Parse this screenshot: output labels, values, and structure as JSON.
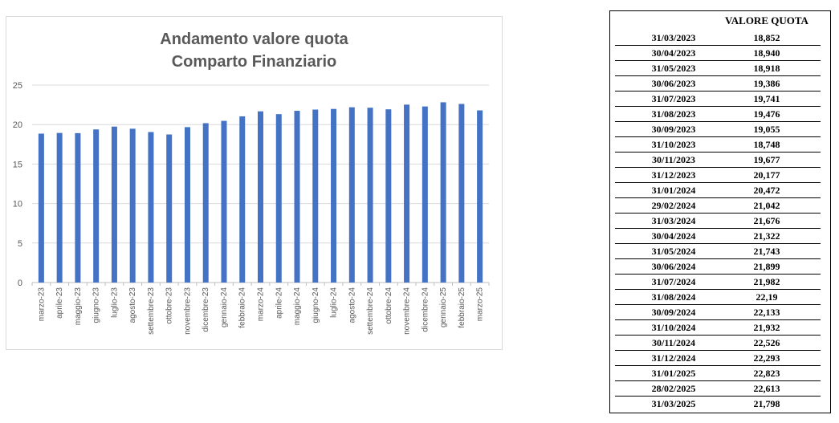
{
  "chart_data": {
    "type": "bar",
    "title_lines": [
      "Andamento valore quota",
      "Comparto Finanziario"
    ],
    "categories": [
      "marzo-23",
      "aprile-23",
      "maggio-23",
      "giugno-23",
      "luglio-23",
      "agosto-23",
      "settembre-23",
      "ottobre-23",
      "novembre-23",
      "dicembre-23",
      "gennaio-24",
      "febbraio-24",
      "marzo-24",
      "aprile-24",
      "maggio-24",
      "giugno-24",
      "luglio-24",
      "agosto-24",
      "settembre-24",
      "ottobre-24",
      "novembre-24",
      "dicembre-24",
      "gennaio-25",
      "febbraio-25",
      "marzo-25"
    ],
    "values": [
      18.852,
      18.94,
      18.918,
      19.386,
      19.741,
      19.476,
      19.055,
      18.748,
      19.677,
      20.177,
      20.472,
      21.042,
      21.676,
      21.322,
      21.743,
      21.899,
      21.982,
      22.19,
      22.133,
      21.932,
      22.526,
      22.293,
      22.823,
      22.613,
      21.798
    ],
    "ylim": [
      0,
      25
    ],
    "yticks": [
      "0",
      "5",
      "10",
      "15",
      "20",
      "25"
    ],
    "grid": true,
    "bar_color": "#4472c4",
    "grid_color": "#d9d9d9"
  },
  "table": {
    "header": "VALORE QUOTA",
    "rows": [
      {
        "date": "31/03/2023",
        "value": "18,852"
      },
      {
        "date": "30/04/2023",
        "value": "18,940"
      },
      {
        "date": "31/05/2023",
        "value": "18,918"
      },
      {
        "date": "30/06/2023",
        "value": "19,386"
      },
      {
        "date": "31/07/2023",
        "value": "19,741"
      },
      {
        "date": "31/08/2023",
        "value": "19,476"
      },
      {
        "date": "30/09/2023",
        "value": "19,055"
      },
      {
        "date": "31/10/2023",
        "value": "18,748"
      },
      {
        "date": "30/11/2023",
        "value": "19,677"
      },
      {
        "date": "31/12/2023",
        "value": "20,177"
      },
      {
        "date": "31/01/2024",
        "value": "20,472"
      },
      {
        "date": "29/02/2024",
        "value": "21,042"
      },
      {
        "date": "31/03/2024",
        "value": "21,676"
      },
      {
        "date": "30/04/2024",
        "value": "21,322"
      },
      {
        "date": "31/05/2024",
        "value": "21,743"
      },
      {
        "date": "30/06/2024",
        "value": "21,899"
      },
      {
        "date": "31/07/2024",
        "value": "21,982"
      },
      {
        "date": "31/08/2024",
        "value": "22,19"
      },
      {
        "date": "30/09/2024",
        "value": "22,133"
      },
      {
        "date": "31/10/2024",
        "value": "21,932"
      },
      {
        "date": "30/11/2024",
        "value": "22,526"
      },
      {
        "date": "31/12/2024",
        "value": "22,293"
      },
      {
        "date": "31/01/2025",
        "value": "22,823"
      },
      {
        "date": "28/02/2025",
        "value": "22,613"
      },
      {
        "date": "31/03/2025",
        "value": "21,798"
      }
    ]
  }
}
